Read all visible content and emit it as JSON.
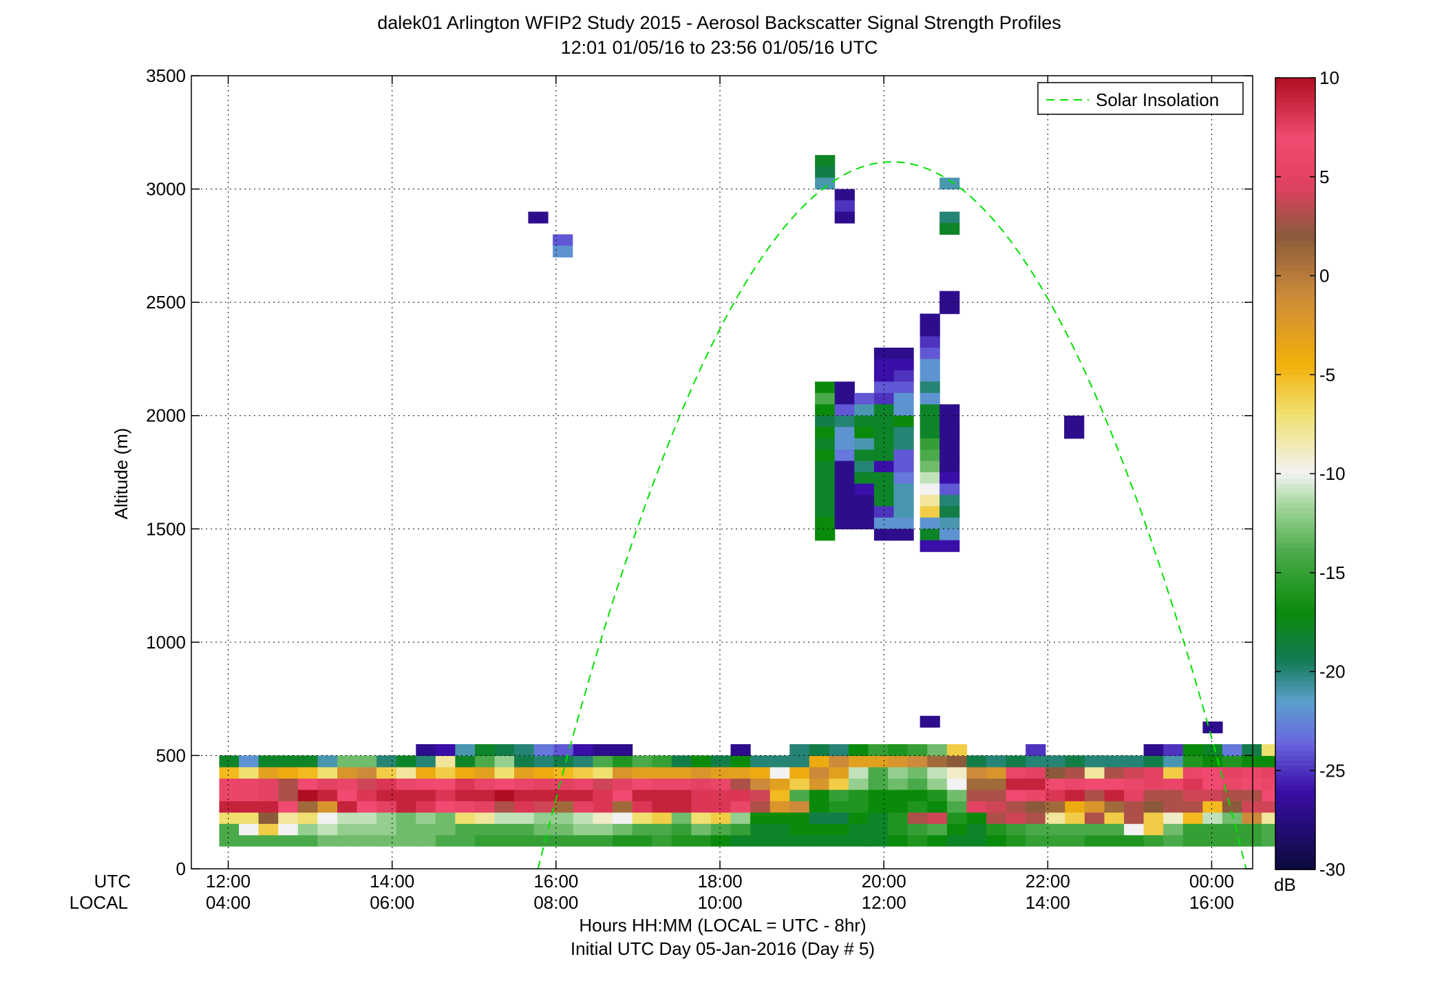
{
  "chart_data": {
    "type": "heatmap",
    "title": "dalek01 Arlington WFIP2 Study 2015 - Aerosol Backscatter Signal Strength Profiles",
    "subtitle": "12:01 01/05/16 to 23:56 01/05/16  UTC",
    "ylabel": "Altitude (m)",
    "xlabel": "Hours HH:MM  (LOCAL = UTC - 8hr)",
    "xlabel2": "Initial UTC Day 05-Jan-2016 (Day # 5)",
    "row_label_utc": "UTC",
    "row_label_local": "LOCAL",
    "colorbar_unit": "dB",
    "legend_label": "Solar Insolation",
    "legend_position": "top-right",
    "grid": true,
    "xlim_hours": [
      11.55,
      24.5
    ],
    "ylim": [
      0,
      3500
    ],
    "clim": [
      -30,
      10
    ],
    "x_ticks": [
      {
        "hour": 12,
        "utc": "12:00",
        "local": "04:00"
      },
      {
        "hour": 14,
        "utc": "14:00",
        "local": "06:00"
      },
      {
        "hour": 16,
        "utc": "16:00",
        "local": "08:00"
      },
      {
        "hour": 18,
        "utc": "18:00",
        "local": "10:00"
      },
      {
        "hour": 20,
        "utc": "20:00",
        "local": "12:00"
      },
      {
        "hour": 22,
        "utc": "22:00",
        "local": "14:00"
      },
      {
        "hour": 24,
        "utc": "00:00",
        "local": "16:00"
      }
    ],
    "y_ticks": [
      0,
      500,
      1000,
      1500,
      2000,
      2500,
      3000,
      3500
    ],
    "y_tick_labels": [
      "0",
      "500",
      "1000",
      "1500",
      "2000",
      "2500",
      "3000",
      "3500"
    ],
    "colorbar_ticks": [
      10,
      5,
      0,
      -5,
      -10,
      -15,
      -20,
      -25,
      -30
    ],
    "colorbar_tick_labels": [
      "10",
      "5",
      "0",
      "-5",
      "-10",
      "-15",
      "-20",
      "-25",
      "-30"
    ],
    "colors": {
      "grid": "#000000",
      "solar_curve": "#00e000",
      "colormap": [
        [
          -30,
          "#0a0a3c"
        ],
        [
          -26,
          "#3a0ea8"
        ],
        [
          -23.5,
          "#6a6ae0"
        ],
        [
          -21.5,
          "#5aa0cc"
        ],
        [
          -19.5,
          "#157a57"
        ],
        [
          -17,
          "#0a8a0a"
        ],
        [
          -14,
          "#4aaa4a"
        ],
        [
          -11.5,
          "#a8d8a0"
        ],
        [
          -10,
          "#f2f2f2"
        ],
        [
          -7,
          "#f0e070"
        ],
        [
          -4.5,
          "#f2b00a"
        ],
        [
          -1,
          "#cc8a3a"
        ],
        [
          2,
          "#8a5a3a"
        ],
        [
          4.5,
          "#e04060"
        ],
        [
          7,
          "#f04a70"
        ],
        [
          10,
          "#b00e22"
        ]
      ]
    },
    "cell_width_hours": 0.24,
    "cell_height_m": 50,
    "time_start_hour": 12.01,
    "altitudes": [
      125,
      175,
      225,
      275,
      325,
      375,
      425,
      475,
      525
    ],
    "low_layer_rows": [
      [
        -14,
        -14,
        -14,
        -14,
        -14,
        -13,
        -13,
        -13,
        -13,
        -13,
        -13,
        -14,
        -14,
        -15,
        -15,
        -15,
        -15,
        -15,
        -15,
        -15,
        -16,
        -16,
        -15,
        -16,
        -16,
        -17,
        -18,
        -18,
        -18,
        -18,
        -18,
        -18,
        -18,
        -18,
        -17,
        -16,
        -17,
        -18,
        -18,
        -17,
        -16,
        -15,
        -15,
        -15,
        -16,
        -16,
        -16,
        -15,
        -14,
        -15,
        -15,
        -15,
        -15,
        -14
      ],
      [
        -14,
        -10,
        -6,
        -10,
        -12,
        -11,
        -12,
        -12,
        -12,
        -13,
        -13,
        -13,
        -14,
        -14,
        -14,
        -14,
        -13,
        -13,
        -12,
        -12,
        -13,
        -14,
        -14,
        -15,
        -13,
        -14,
        -15,
        -18,
        -18,
        -17,
        -17,
        -17,
        -18,
        -18,
        -16,
        -15,
        -14,
        -17,
        -18,
        -16,
        -15,
        -14,
        -14,
        -14,
        -14,
        -14,
        -10,
        -6,
        -13,
        -15,
        -15,
        -15,
        -15,
        -14
      ],
      [
        -7,
        -7,
        2,
        -8,
        -7,
        -10,
        -11,
        -11,
        -12,
        -13,
        -12,
        -13,
        -7,
        -8,
        -11,
        -11,
        -12,
        -12,
        -11,
        -9,
        -10,
        -7,
        -6,
        -13,
        -7,
        -6,
        -12,
        -17,
        -17,
        -17,
        -19,
        -19,
        -17,
        -18,
        -16,
        3,
        4,
        -16,
        -17,
        3,
        4,
        3,
        -8,
        -6,
        3,
        -6,
        3,
        -6,
        -9,
        -5,
        -11,
        -13,
        -1,
        -8
      ],
      [
        9,
        9,
        9,
        7,
        1,
        -2,
        9,
        7,
        5,
        9,
        8,
        7,
        6,
        5,
        3,
        8,
        4,
        1,
        5,
        8,
        1,
        8,
        9,
        9,
        8,
        8,
        6,
        3,
        -2,
        -1,
        -17,
        -16,
        -16,
        -17,
        -17,
        -16,
        -17,
        -14,
        5,
        4,
        3,
        2,
        1,
        -4,
        -2,
        1,
        3,
        2,
        3,
        3,
        -5,
        2,
        4,
        4
      ],
      [
        6,
        6,
        5,
        3,
        10,
        9,
        7,
        8,
        9,
        9,
        9,
        8,
        9,
        9,
        10,
        9,
        9,
        9,
        9,
        8,
        7,
        9,
        9,
        9,
        8,
        8,
        8,
        4,
        -5,
        -14,
        -17,
        -15,
        -16,
        -17,
        -17,
        -17,
        -16,
        -13,
        3,
        3,
        7,
        6,
        8,
        9,
        3,
        9,
        5,
        3,
        3,
        4,
        4,
        3,
        3,
        7
      ],
      [
        6,
        6,
        5,
        3,
        7,
        5,
        6,
        4,
        8,
        6,
        7,
        7,
        8,
        6,
        7,
        6,
        5,
        5,
        6,
        4,
        5,
        7,
        6,
        6,
        5,
        6,
        3,
        -1,
        -3,
        -6,
        -2,
        -6,
        -12,
        -14,
        -13,
        -14,
        -12,
        -10,
        1,
        1,
        9,
        9,
        7,
        6,
        7,
        7,
        6,
        5,
        6,
        8,
        7,
        6,
        7,
        6
      ],
      [
        -5,
        -7,
        -3,
        -4,
        -5,
        -7,
        -2,
        -1,
        -6,
        -8,
        -4,
        -6,
        -4,
        -3,
        -7,
        -3,
        -4,
        -5,
        -6,
        -7,
        -2,
        -3,
        -3,
        -3,
        -2,
        -3,
        -3,
        -4,
        -10,
        -4,
        -1,
        -3,
        -11,
        -14,
        -12,
        -13,
        -11,
        -9,
        -1,
        -2,
        6,
        5,
        2,
        3,
        -8,
        3,
        4,
        5,
        -6,
        6,
        7,
        5,
        6,
        5
      ],
      [
        -18,
        -22,
        -18,
        -18,
        -18,
        -21,
        -13,
        -13,
        -20,
        -18,
        -20,
        -8,
        -18,
        -14,
        -12,
        -19,
        -20,
        -19,
        -20,
        -14,
        -16,
        -14,
        -15,
        -19,
        -17,
        -19,
        -17,
        -20,
        -20,
        -20,
        -4,
        -1,
        -3,
        -3,
        -2,
        -1,
        1,
        2,
        -19,
        -20,
        -19,
        -20,
        -20,
        -19,
        -20,
        -20,
        -20,
        -19,
        -21,
        -16,
        -17,
        -16,
        -17,
        -17
      ],
      [
        null,
        null,
        null,
        null,
        null,
        null,
        null,
        null,
        null,
        null,
        -27,
        -26,
        -21,
        -18,
        -19,
        -20,
        -23,
        -24,
        -26,
        -27,
        -27,
        null,
        null,
        null,
        null,
        null,
        -27,
        null,
        null,
        -20,
        -19,
        -20,
        -17,
        -15,
        -16,
        -15,
        -13,
        -6,
        null,
        null,
        null,
        -25,
        null,
        null,
        null,
        null,
        null,
        -27,
        -25,
        -17,
        -18,
        -23,
        -19,
        -7
      ]
    ],
    "sparse_cells": [
      {
        "t": 15.78,
        "alt": 2875,
        "dB": -27
      },
      {
        "t": 16.08,
        "alt": 2775,
        "dB": -24
      },
      {
        "t": 16.08,
        "alt": 2725,
        "dB": -22
      },
      {
        "t": 20.56,
        "alt": 650,
        "dB": -27
      },
      {
        "t": 24.01,
        "alt": 625,
        "dB": -27
      },
      {
        "t": 19.28,
        "alt": 3125,
        "dB": -18
      },
      {
        "t": 19.28,
        "alt": 3075,
        "dB": -19
      },
      {
        "t": 19.28,
        "alt": 3025,
        "dB": -21
      },
      {
        "t": 19.52,
        "alt": 2975,
        "dB": -27
      },
      {
        "t": 19.52,
        "alt": 2925,
        "dB": -25
      },
      {
        "t": 19.52,
        "alt": 2875,
        "dB": -27
      },
      {
        "t": 20.8,
        "alt": 3025,
        "dB": -21
      },
      {
        "t": 20.8,
        "alt": 2875,
        "dB": -20
      },
      {
        "t": 20.8,
        "alt": 2825,
        "dB": -18
      },
      {
        "t": 20.8,
        "alt": 2525,
        "dB": -27
      },
      {
        "t": 20.8,
        "alt": 2475,
        "dB": -27
      },
      {
        "t": 20.56,
        "alt": 2425,
        "dB": -27
      },
      {
        "t": 20.56,
        "alt": 2375,
        "dB": -27
      },
      {
        "t": 20.56,
        "alt": 2325,
        "dB": -25
      },
      {
        "t": 22.32,
        "alt": 1975,
        "dB": -27
      },
      {
        "t": 22.32,
        "alt": 1925,
        "dB": -27
      }
    ],
    "cloud_cells": {
      "times": [
        19.28,
        19.52,
        19.76,
        20.0,
        20.24,
        20.56,
        20.8
      ],
      "altitudes": [
        2275,
        2225,
        2175,
        2125,
        2075,
        2025,
        1975,
        1925,
        1875,
        1825,
        1775,
        1725,
        1675,
        1625,
        1575,
        1525,
        1475,
        1425
      ],
      "values": [
        [
          null,
          null,
          null,
          -27,
          -27,
          -24,
          null
        ],
        [
          null,
          null,
          null,
          -26,
          -26,
          -22,
          null
        ],
        [
          null,
          null,
          null,
          -26,
          -25,
          -22,
          null
        ],
        [
          -17,
          -27,
          null,
          -24,
          -24,
          -20,
          null
        ],
        [
          -14,
          -27,
          -24,
          -25,
          -22,
          -22,
          null
        ],
        [
          -17,
          -24,
          -21,
          -18,
          -22,
          -18,
          -27
        ],
        [
          -19,
          -20,
          -18,
          -18,
          -17,
          -18,
          -27
        ],
        [
          -17,
          -22,
          -17,
          -18,
          -20,
          -18,
          -27
        ],
        [
          -18,
          -22,
          -21,
          -18,
          -20,
          -15,
          -27
        ],
        [
          -17,
          -23,
          -18,
          -18,
          -24,
          -14,
          -27
        ],
        [
          -18,
          -27,
          -20,
          -26,
          -24,
          -13,
          -27
        ],
        [
          -18,
          -27,
          -18,
          -18,
          -23,
          -11,
          -26
        ],
        [
          -18,
          -27,
          -26,
          -18,
          -21,
          -10,
          -24
        ],
        [
          -18,
          -27,
          -27,
          -18,
          -21,
          -8,
          -20
        ],
        [
          -18,
          -27,
          -27,
          -25,
          -21,
          -6,
          -19
        ],
        [
          -17,
          -27,
          -27,
          -22,
          -22,
          -22,
          -21
        ],
        [
          -17,
          null,
          null,
          -27,
          -27,
          -18,
          -22
        ],
        [
          null,
          null,
          null,
          null,
          null,
          -26,
          -26
        ]
      ]
    },
    "solar_insolation": {
      "peak_hour": 20.1,
      "peak_altitude": 3120,
      "zero_hours": [
        15.78,
        24.42
      ]
    }
  }
}
